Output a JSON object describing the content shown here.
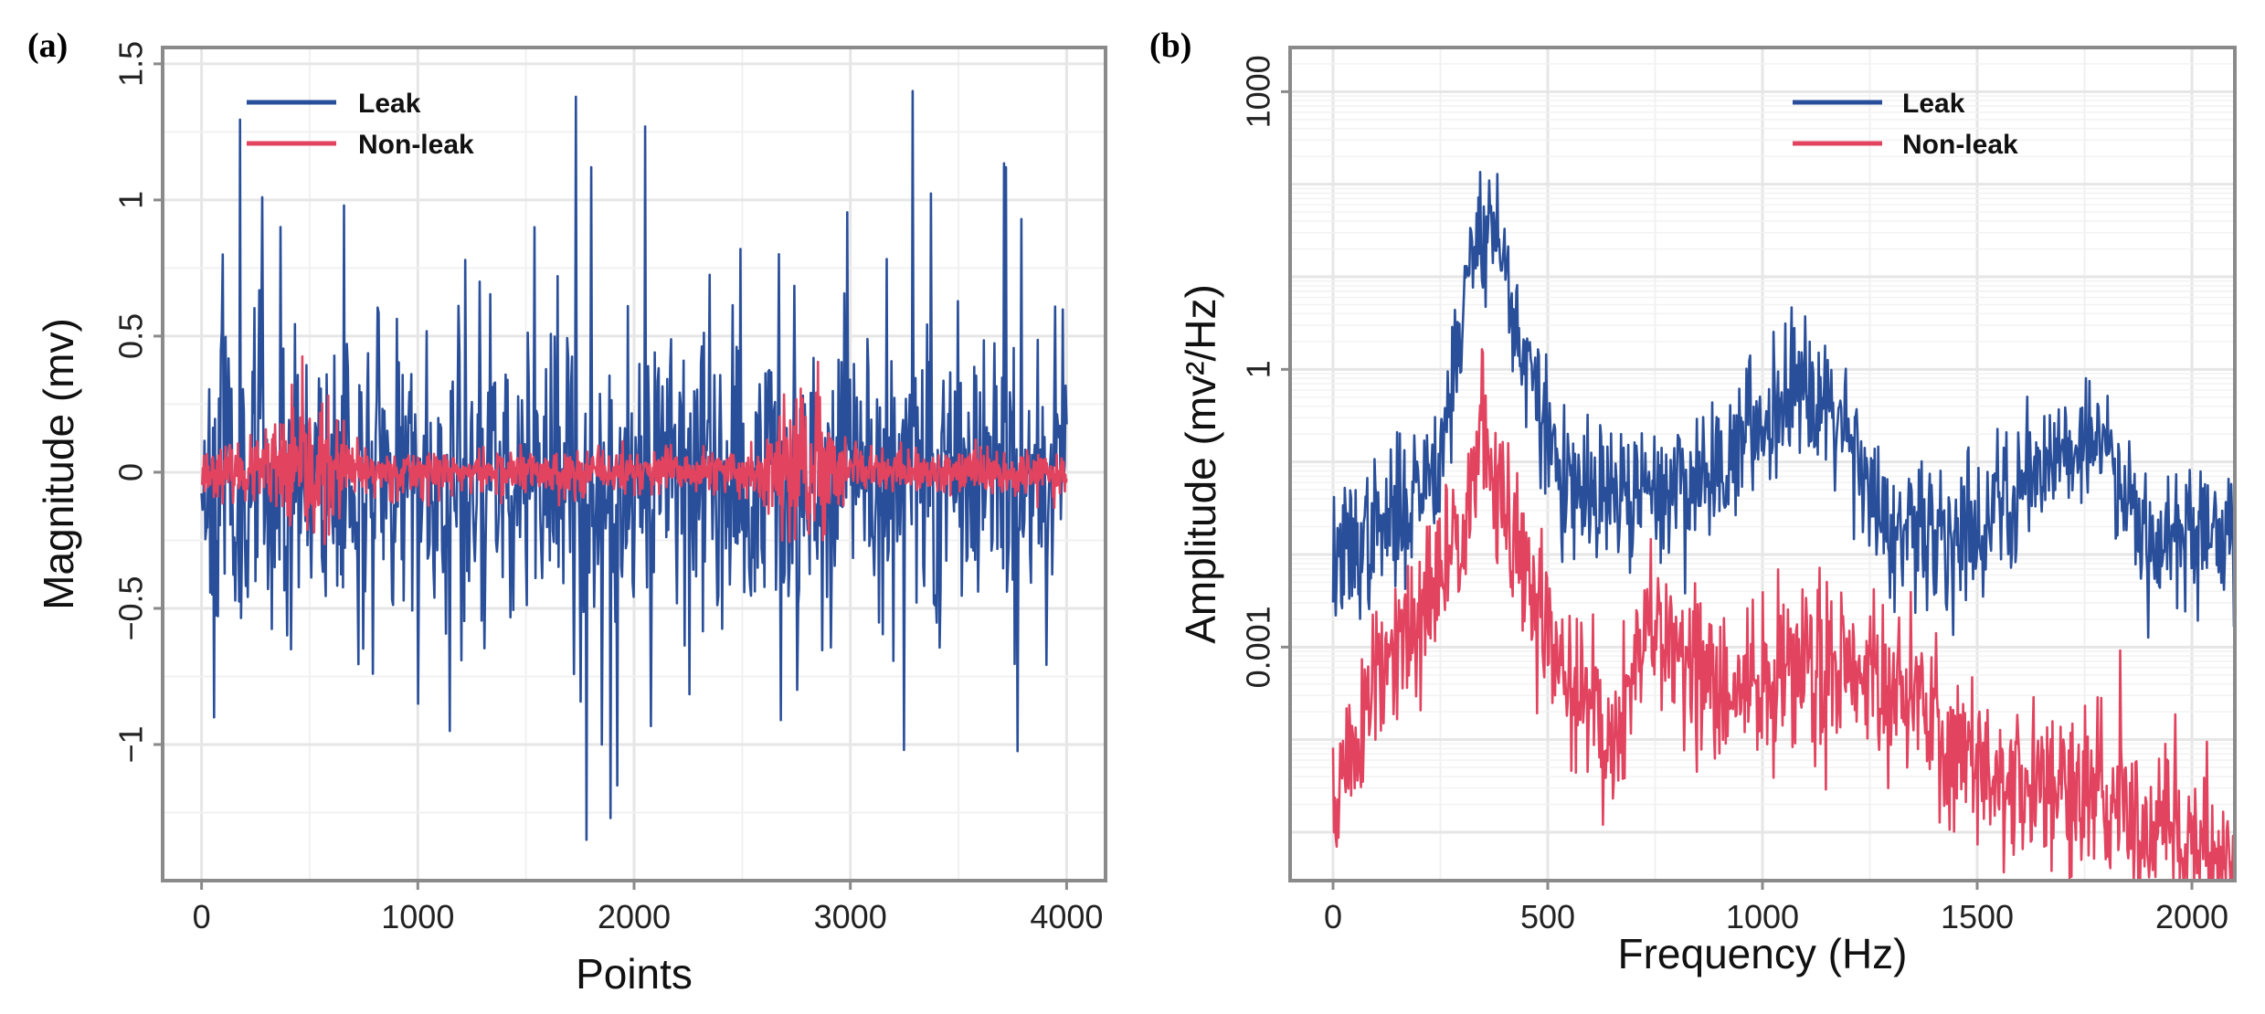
{
  "colors": {
    "leak": "#2a4f9a",
    "nonleak": "#e2435f",
    "grid": "#e6e6e6",
    "frame": "#8a8a8a"
  },
  "chart_data": [
    {
      "panel_label": "(a)",
      "type": "line",
      "title": "",
      "xlabel": "Points",
      "ylabel": "Magnitude (mv)",
      "xlim": [
        -180,
        4180
      ],
      "ylim": [
        -1.5,
        1.56
      ],
      "xticks": [
        0,
        1000,
        2000,
        3000,
        4000
      ],
      "xtick_labels": [
        "0",
        "1000",
        "2000",
        "3000",
        "4000"
      ],
      "yticks": [
        -1,
        -0.5,
        0,
        0.5,
        1,
        1.5
      ],
      "ytick_labels": [
        "−1",
        "−0.5",
        "0",
        "0.5",
        "1",
        "1.5"
      ],
      "grid": true,
      "legend": [
        "Leak",
        "Non-leak"
      ],
      "legend_position": "top-left",
      "series": [
        {
          "name": "Leak",
          "color": "#2a4f9a",
          "seed": 11,
          "x": [
            0,
            4000
          ],
          "n_points": 900,
          "noise_sd": 0.28,
          "peaks": [
            [
              60,
              -0.9
            ],
            [
              100,
              0.8
            ],
            [
              280,
              1.01
            ],
            [
              660,
              0.98
            ],
            [
              790,
              -0.74
            ],
            [
              1000,
              -0.85
            ],
            [
              1150,
              -0.95
            ],
            [
              1220,
              0.78
            ],
            [
              1540,
              0.9
            ],
            [
              1780,
              -1.35
            ],
            [
              1800,
              1.12
            ],
            [
              1850,
              -1.0
            ],
            [
              1890,
              -1.27
            ],
            [
              1920,
              -1.15
            ],
            [
              2050,
              1.27
            ],
            [
              2490,
              0.82
            ],
            [
              2680,
              -0.91
            ],
            [
              3290,
              1.4
            ],
            [
              3250,
              -1.02
            ],
            [
              3720,
              1.12
            ],
            [
              3790,
              0.93
            ]
          ]
        },
        {
          "name": "Non-leak",
          "color": "#e2435f",
          "seed": 23,
          "x": [
            0,
            4000
          ],
          "n_points": 1400,
          "noise_sd": 0.055,
          "bursts": [
            [
              480,
              180,
              0.13
            ],
            [
              2750,
              130,
              0.21
            ]
          ]
        }
      ]
    },
    {
      "panel_label": "(b)",
      "type": "line",
      "title": "",
      "xlabel": "Frequency (Hz)",
      "ylabel": "Amplitude (mv²/Hz)",
      "yscale": "log",
      "xlim": [
        -100,
        2100
      ],
      "ylim": [
        3e-06,
        3000
      ],
      "xticks": [
        0,
        500,
        1000,
        1500,
        2000
      ],
      "xtick_labels": [
        "0",
        "500",
        "1000",
        "1500",
        "2000"
      ],
      "yticks": [
        0.001,
        1,
        1000
      ],
      "ytick_labels": [
        "0.001",
        "1",
        "1000"
      ],
      "grid": true,
      "legend": [
        "Leak",
        "Non-leak"
      ],
      "legend_position": "top-right",
      "series": [
        {
          "name": "Leak",
          "color": "#2a4f9a",
          "seed": 37,
          "x": [
            0,
            2100
          ],
          "n_points": 1000,
          "noise_dex": 0.38,
          "envelope_log10": [
            [
              0,
              -2.1
            ],
            [
              150,
              -1.6
            ],
            [
              250,
              -0.9
            ],
            [
              330,
              1.4
            ],
            [
              350,
              1.6
            ],
            [
              380,
              1.5
            ],
            [
              450,
              0.0
            ],
            [
              550,
              -1.4
            ],
            [
              700,
              -1.4
            ],
            [
              850,
              -1.2
            ],
            [
              1000,
              -0.6
            ],
            [
              1080,
              0.0
            ],
            [
              1200,
              -0.6
            ],
            [
              1300,
              -1.9
            ],
            [
              1500,
              -1.7
            ],
            [
              1700,
              -0.8
            ],
            [
              1800,
              -0.8
            ],
            [
              1900,
              -1.8
            ],
            [
              2100,
              -1.8
            ]
          ]
        },
        {
          "name": "Non-leak",
          "color": "#e2435f",
          "seed": 51,
          "x": [
            0,
            2100
          ],
          "n_points": 1000,
          "noise_dex": 0.45,
          "envelope_log10": [
            [
              0,
              -4.7
            ],
            [
              100,
              -3.4
            ],
            [
              200,
              -2.8
            ],
            [
              280,
              -1.9
            ],
            [
              350,
              -0.7
            ],
            [
              380,
              -1.3
            ],
            [
              450,
              -2.3
            ],
            [
              550,
              -3.4
            ],
            [
              650,
              -4.0
            ],
            [
              730,
              -2.9
            ],
            [
              800,
              -2.9
            ],
            [
              900,
              -3.6
            ],
            [
              1000,
              -3.4
            ],
            [
              1200,
              -3.1
            ],
            [
              1300,
              -3.4
            ],
            [
              1500,
              -4.3
            ],
            [
              1800,
              -4.7
            ],
            [
              2100,
              -5.2
            ]
          ]
        }
      ]
    }
  ]
}
